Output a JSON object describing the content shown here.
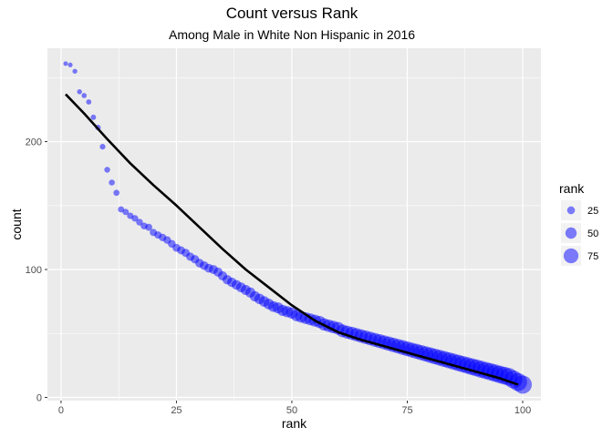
{
  "chart_data": {
    "type": "scatter",
    "title": "Count versus Rank",
    "subtitle": "Among Male in White Non Hispanic in 2016",
    "xlabel": "rank",
    "ylabel": "count",
    "xlim": [
      -2.95,
      103.95
    ],
    "ylim": [
      -2.5,
      273
    ],
    "x_ticks": [
      0,
      25,
      50,
      75,
      100
    ],
    "y_ticks": [
      0,
      100,
      200
    ],
    "grid": true,
    "legend": {
      "title": "rank",
      "placement": "right",
      "entries": [
        {
          "label": "25",
          "value": 25
        },
        {
          "label": "50",
          "value": 50
        },
        {
          "label": "75",
          "value": 75
        }
      ]
    },
    "point_color": "#0000FF",
    "point_alpha": 0.5,
    "size_by": "rank",
    "series": [
      {
        "x": [
          1,
          2,
          3,
          4,
          5,
          6,
          7,
          8,
          9,
          10,
          11,
          12,
          13,
          14,
          15,
          16,
          17,
          18,
          19,
          20,
          21,
          22,
          23,
          24,
          25,
          26,
          27,
          28,
          29,
          30,
          31,
          32,
          33,
          34,
          35,
          36,
          37,
          38,
          39,
          40,
          41,
          42,
          43,
          44,
          45,
          46,
          47,
          48,
          49,
          50,
          51,
          52,
          53,
          54,
          55,
          56,
          57,
          58,
          59,
          60,
          61,
          62,
          63,
          64,
          65,
          66,
          67,
          68,
          69,
          70,
          71,
          72,
          73,
          74,
          75,
          76,
          77,
          78,
          79,
          80,
          81,
          82,
          83,
          84,
          85,
          86,
          87,
          88,
          89,
          90,
          91,
          92,
          93,
          94,
          95,
          96,
          97,
          98,
          99,
          100
        ],
        "y": [
          261,
          260,
          255,
          239,
          236,
          231,
          219,
          211,
          196,
          178,
          168,
          160,
          147,
          145,
          142,
          140,
          137,
          134,
          133,
          129,
          127,
          125,
          123,
          120,
          117,
          115,
          113,
          110,
          108,
          105,
          103,
          101,
          100,
          98,
          95,
          92,
          90,
          88,
          86,
          84,
          82,
          79,
          77,
          75,
          73,
          71,
          70,
          68,
          67,
          66,
          64,
          63,
          62,
          61,
          60,
          59,
          57,
          56,
          55,
          54,
          52,
          51,
          50,
          49,
          48,
          47,
          46,
          45,
          44,
          43,
          42,
          41,
          40,
          39,
          38,
          37,
          36,
          35,
          34,
          33,
          32,
          31,
          30,
          29,
          28,
          27,
          26,
          25,
          24,
          23,
          22,
          21,
          20,
          19,
          18,
          17,
          16,
          14,
          12,
          10
        ]
      }
    ],
    "fit_line": {
      "type": "smooth",
      "color": "#000000",
      "x": [
        1,
        5,
        10,
        15,
        20,
        25,
        30,
        35,
        40,
        45,
        50,
        55,
        60,
        65,
        70,
        75,
        80,
        85,
        90,
        95,
        99
      ],
      "y": [
        237,
        222,
        202,
        183,
        166,
        150,
        133,
        116,
        100,
        86,
        72,
        60,
        51,
        45,
        40,
        35,
        30,
        25,
        20,
        15,
        10
      ]
    }
  }
}
